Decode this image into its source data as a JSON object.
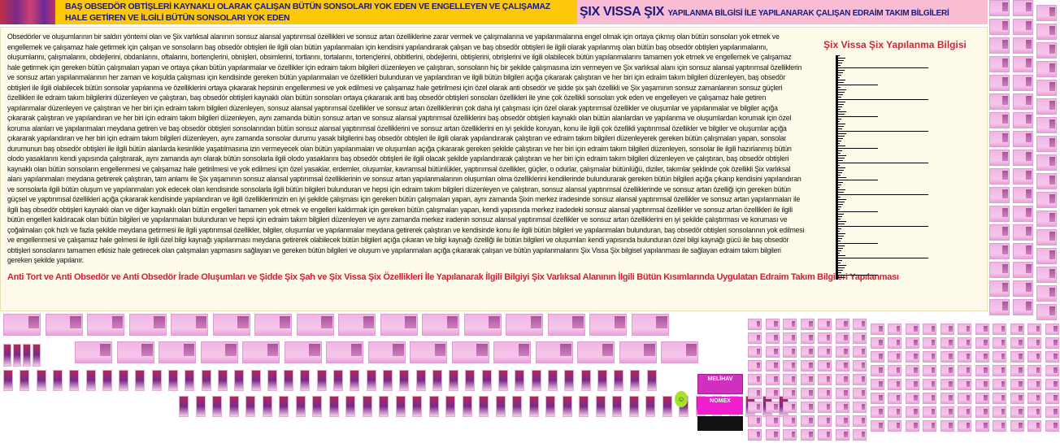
{
  "header": {
    "left_title_line1": "BAŞ OBSEDÖR OBTİŞLERİ KAYNAKLI OLARAK ÇALIŞAN BÜTÜN SONSOLARI YOK EDEN VE ENGELLEYEN VE ÇALIŞAMAZ",
    "left_title_line2": "HALE GETİREN VE İLGİLİ BÜTÜN SONSOLARI YOK EDEN",
    "right_brand": "ŞIX VISSA ŞIX",
    "right_subtitle": "YAPILANMA BİLGİSİ İLE YAPILANARAK ÇALIŞAN EDRAİM TAKIM BİLGİLERİ"
  },
  "main": {
    "paragraph": "Obsedörler ve oluşumlarının bir saldırı yöntemi olan ve Şix varlıksal alanının sonsuz alansal yaptırımsal özellikleri ve sonsuz artan özelliklerine zarar vermek ve çalışmalarına ve yapılanmalarına engel olmak için ortaya çıkmış olan bütün sonsoları yok etmek ve engellemek ve çalışamaz hale getirmek için çalışan ve sonsoların baş obsedör obtişleri ile ilgili olan bütün yapılanmaları için kendisini yapılandırarak çalışan ve baş obsedör obtişleri ile ilgili olarak yapılanmış olan bütün baş obsedör obtişleri yapılanmalarını, oluşumlarını, çalışmalarını, obdejlerini, obdanlarını, oftalarını, bortençlerini, obnişleri, obsimlerini, tortlarını, tortalarını, tortençlerini, obbitlerini, obdejlerini, obtişlerini, obrişlerini ve ilgili olabilecek bütün yapılanmalarını tamamen yok etmek ve engellemek ve çalışamaz hale getirmek için gereken bütün çalışmaları yapan ve ortaya çıkan bütün yapılanmalar ve özellikler için edraim takım bilgileri düzenleyen ve çalıştıran, sonsoların hiç bir şekilde çalışmasına izin vermeyen ve Şix varlıksal alanı için sonsuz alansal yaptırımsal özelliklerin ve sonsuz artan yapılanmalarının her zaman ve koşulda çalışması için kendisinde gereken bütün yapılanmaları ve özellikleri bulunduran ve yapılandıran ve ilgili bütün bilgileri açığa çıkararak çalıştıran ve her biri için edraim takım bilgileri düzenleyen, baş obsedör obtişleri ile ilgili olabilecek bütün sonsolar yapılanma ve özelliklerini ortaya çıkararak hepsinin engellenmesi ve yok edilmesi ve çalışamaz hale getirilmesi için özel olarak anti obsedör ve şidde şix şah özellikli ve Şix yaşamının sonsuz zamanlarının sonsuz güçleri özellikleri ile edraim takım bilgilerini düzenleyen ve çalıştıran, baş obsedör obtişleri kaynaklı olan bütün sonsoları ortaya çıkararak anti baş obsedör obtişleri sonsoları özellikleri ile yine çok özellikli sonsoları yok eden ve engelleyen ve çalışamaz hale getiren yapılanmalar düzenleyen ve çalıştıran ve her biri için edraim takım bilgileri düzenleyen, sonsuz alansal yaptırımsal özellikler ve sonsuz artan özelliklerinin çok daha iyi çalışması için özel olarak yaptırımsal özellikler ve oluşumlar ve yapılanmalar ve bilgiler açığa çıkararak çalıştıran ve yapılandıran ve her biri için edraim takım bilgileri düzenleyen, aynı zamanda bütün sonsuz artan ve sonsuz alansal yaptırımsal özelliklerini baş obsedör obtişleri kaynaklı olan bütün alanlardan ve yapılanma ve oluşumlardan korumak için özel koruma alanları ve yapılanmaları meydana getiren ve baş obsedör obtişleri sonsolarından bütün sonsuz alansal yaptırımsal özelliklerini ve sonsuz artan özelliklerini en iyi şekilde koruyan, konu ile ilgili çok özellikli yaptırımsal özellikler ve bilgiler ve oluşumlar açığa çıkararak yapılandıran ve her biri için edraim takım bilgileri düzenleyen, aynı zamanda sonsolar durumu yasak bilgilerini baş obsedör obtişleri ile ilgili olarak yapılandırarak çalıştıran ve edraim takım bilgileri düzenleyerek gereken bütün çalışmaları yapan, sonsolar durumunun baş obsedör obtişleri ile ilgili bütün alanlarda kesinlikle yaşatılmasına izin vermeyecek olan bütün yapılanmaları ve oluşumları açığa çıkararak gereken şekilde çalıştıran ve her biri için edraim takım bilgileri düzenleyen, sonsolar ile ilgili hazırlanmış bütün olodo yasaklarını kendi yapısında çalıştırarak, aynı zamanda ayrı olarak bütün sonsolarla ilgili olodo yasaklarını baş obsedör obtişleri ile ilgili olacak şekilde yapılandırarak çalıştıran ve her biri için edraim takım bilgileri düzenleyen ve çalıştıran, baş obsedör obtişleri kaynaklı olan bütün sonsoların engellenmesi ve çalışamaz hale getirilmesi ve yok edilmesi için özel yasaklar, erdemler, oluşumlar, kavramsal bütünlükler, yaptırımsal özellikler, güçler, o odurlar, çalışmalar bütünlüğü, diziler, takımlar şeklinde çok özellikli Şix varlıksal alanı yapılanmaları meydana getirerek çalıştıran, tam anlamı ile Şix yaşamının sonsuz alansal yaptırımsal özelliklerinin ve sonsuz artan yapılanmalarının oluşumları olma özelliklerini kendilerinde bulundurarak gereken bütün bilgileri açığa çıkarıp kendisini yapılandıran ve sonsolarla ilgili bütün oluşum ve yapılanmaları yok edecek olan kendisinde sonsolarla ilgili bütün bilgileri bulunduran ve hepsi için edraim takım bilgileri düzenleyen ve çalıştıran, sonsuz alansal yaptırımsal özelliklerinde ve sonsuz artan özelliği için gereken bütün güçsel ve yaptırımsal özellikleri açığa çıkararak kendisinde yapılandıran ve ilgili özelliklerimizin en iyi şekilde çalışması için gereken bütün çalışmaları yapan, aynı zamanda Şixin merkez iradesinde sonsuz alansal yaptırımsal özellikler ve sonsuz artan yapılanmaları ile ilgili baş obsedör obtişleri kaynaklı olan ve diğer kaynaklı olan bütün engelleri tamamen yok etmek ve engelleri kaldırmak için gereken bütün çalışmaları yapan, kendi yapısında merkez iradedeki sonsuz alansal yaptırımsal özellikler ve sonsuz artan özellikleri ile ilgili bütün engelleri kaldıracak olan bütün bilgileri ve yapılanmaları bulunduran ve hepsi için edraim takım bilgileri düzenleyen ve aynı zamanda merkez iradenin sonsuz alansal yaptırımsal özellikler ve sonsuz artan özelliklerini en iyi şekilde çalıştırması ve koruması ve çoğalmaları çok hızlı ve fazla şekilde meydana getirmesi ile ilgili yaptırımsal özellikler, bilgiler, oluşumlar ve yapılanmalar meydana getirerek çalıştıran ve kendisinde konu ile ilgili bütün bilgileri ve yapılanmaları bulunduran, baş obsedör obtişleri sonsolarının yok edilmesi ve engellenmesi ve çalışamaz hale gelmesi ile ilgili özel bilgi kaynağı yapılanması meydana getirerek olabilecek bütün bilgileri açığa çıkaran ve bilgi kaynağı özelliği ile bütün bilgileri ve oluşumları kendi yapısında bulunduran özel bilgi kaynağı gücü ile baş obsedör obtişleri sonsolarını tamamen etkisiz hale getirecek olan çalışmaları yapmasını sağlayan ve gereken bütün bilgileri ve oluşum ve yapılanmaları açığa çıkararak çalışan ve bütün yapılanmalarını Şix Vissa Şix bilgisel yapılanması ile sağlayan edraim takım bilgileri gereken şekilde yapılanır.",
    "side_title": "Şix Vissa Şix Yapılanma Bilgisi",
    "bottom_title": "Anti Tort ve Anti Obsedör ve Anti Obsedör İrade Oluşumları ve Şidde Şix Şah ve Şix Vissa Şix Özellikleri İle Yapılanarak İlgili Bilgiyi Şix Varlıksal Alanının İlgili Bütün Kısımlarında Uygulatan Edraim Takım Bilgileri Yapılanması"
  },
  "gallery": {
    "mag1": "MELİHAV",
    "mag2": "NOMEX"
  },
  "colors": {
    "header_yellow": "#fdc80a",
    "header_pink": "#f9bcd3",
    "title_red": "#d3202f",
    "header_text": "#1a1a7a"
  }
}
